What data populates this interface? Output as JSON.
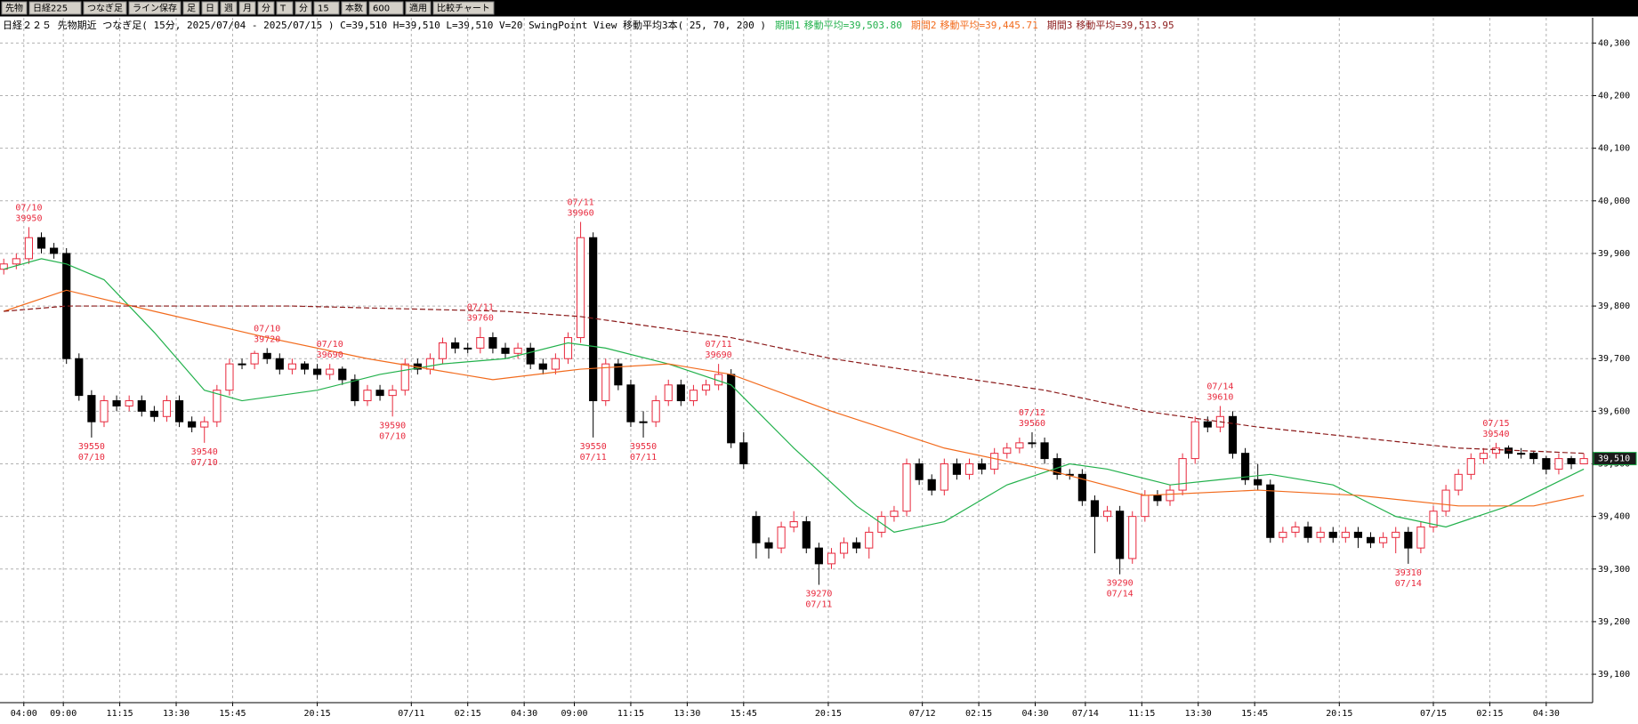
{
  "toolbar": {
    "items": [
      "先物",
      "日経225",
      "つなぎ足",
      "ライン保存",
      "足",
      "日",
      "週",
      "月",
      "分",
      "T",
      "分",
      "15",
      "本数",
      "600",
      "適用",
      "比較チャート"
    ]
  },
  "chart_data": {
    "type": "candlestick",
    "header": "日経２２５ 先物期近 つなぎ足( 15分, 2025/07/04 - 2025/07/15 )  C=39,510 H=39,510 L=39,510 V=20   SwingPoint View   移動平均3本( 25, 70, 200 )",
    "up_color": "#e8283c",
    "down_color": "#000000",
    "xlim": [
      -0.3,
      126.7
    ],
    "ylim": [
      39046,
      40348
    ],
    "grid": true,
    "yticks": [
      {
        "value": 39100,
        "label": "39,100"
      },
      {
        "value": 39200,
        "label": "39,200"
      },
      {
        "value": 39300,
        "label": "39,300"
      },
      {
        "value": 39400,
        "label": "39,400"
      },
      {
        "value": 39500,
        "label": "39,500"
      },
      {
        "value": 39600,
        "label": "39,600"
      },
      {
        "value": 39700,
        "label": "39,700"
      },
      {
        "value": 39800,
        "label": "39,800"
      },
      {
        "value": 39900,
        "label": "39,900"
      },
      {
        "value": 40000,
        "label": "40,000"
      },
      {
        "value": 40100,
        "label": "40,100"
      },
      {
        "value": 40200,
        "label": "40,200"
      },
      {
        "value": 40300,
        "label": "40,300"
      }
    ],
    "xticks": [
      {
        "value": 1.6,
        "label": "04:00"
      },
      {
        "value": 4.75,
        "label": "09:00"
      },
      {
        "value": 9.25,
        "label": "11:15"
      },
      {
        "value": 13.75,
        "label": "13:30"
      },
      {
        "value": 18.25,
        "label": "15:45"
      },
      {
        "value": 25,
        "label": "20:15"
      },
      {
        "value": 32.5,
        "label": "07/11"
      },
      {
        "value": 37,
        "label": "02:15"
      },
      {
        "value": 41.5,
        "label": "04:30"
      },
      {
        "value": 45.5,
        "label": "09:00"
      },
      {
        "value": 50,
        "label": "11:15"
      },
      {
        "value": 54.5,
        "label": "13:30"
      },
      {
        "value": 59,
        "label": "15:45"
      },
      {
        "value": 65.75,
        "label": "20:15"
      },
      {
        "value": 73.25,
        "label": "07/12"
      },
      {
        "value": 77.75,
        "label": "02:15"
      },
      {
        "value": 82.25,
        "label": "04:30"
      },
      {
        "value": 86.25,
        "label": "07/14"
      },
      {
        "value": 90.75,
        "label": "11:15"
      },
      {
        "value": 95.25,
        "label": "13:30"
      },
      {
        "value": 99.75,
        "label": "15:45"
      },
      {
        "value": 106.5,
        "label": "20:15"
      },
      {
        "value": 114,
        "label": "07/15"
      },
      {
        "value": 118.5,
        "label": "02:15"
      },
      {
        "value": 123,
        "label": "04:30"
      }
    ],
    "candles": {
      "open": [
        39870,
        39880,
        39890,
        39930,
        39910,
        39900,
        39700,
        39630,
        39580,
        39620,
        39610,
        39620,
        39600,
        39590,
        39620,
        39580,
        39570,
        39580,
        39640,
        39690,
        39690,
        39710,
        39700,
        39680,
        39690,
        39680,
        39670,
        39680,
        39660,
        39620,
        39640,
        39630,
        39640,
        39690,
        39680,
        39700,
        39730,
        39720,
        39720,
        39740,
        39720,
        39710,
        39720,
        39690,
        39680,
        39700,
        39740,
        39930,
        39620,
        39690,
        39650,
        39580,
        39580,
        39620,
        39650,
        39620,
        39640,
        39650,
        39670,
        39540,
        39400,
        39350,
        39340,
        39380,
        39390,
        39340,
        39310,
        39330,
        39350,
        39340,
        39370,
        39400,
        39410,
        39500,
        39470,
        39450,
        39500,
        39480,
        39500,
        39490,
        39520,
        39530,
        39540,
        39540,
        39510,
        39480,
        39480,
        39430,
        39400,
        39410,
        39320,
        39400,
        39440,
        39430,
        39450,
        39510,
        39580,
        39570,
        39590,
        39520,
        39470,
        39460,
        39360,
        39370,
        39380,
        39360,
        39370,
        39360,
        39370,
        39360,
        39350,
        39360,
        39370,
        39340,
        39380,
        39410,
        39450,
        39480,
        39510,
        39520,
        39530,
        39520,
        39520,
        39510,
        39490,
        39510,
        39500
      ],
      "high": [
        39890,
        39900,
        39950,
        39940,
        39920,
        39910,
        39710,
        39640,
        39630,
        39630,
        39630,
        39630,
        39610,
        39630,
        39630,
        39590,
        39590,
        39650,
        39700,
        39700,
        39715,
        39720,
        39710,
        39700,
        39695,
        39690,
        39690,
        39685,
        39670,
        39650,
        39650,
        39650,
        39700,
        39700,
        39710,
        39740,
        39740,
        39730,
        39760,
        39750,
        39730,
        39730,
        39730,
        39700,
        39710,
        39750,
        39960,
        39940,
        39700,
        39700,
        39660,
        39600,
        39630,
        39660,
        39660,
        39650,
        39660,
        39690,
        39680,
        39560,
        39410,
        39360,
        39390,
        39410,
        39400,
        39350,
        39340,
        39360,
        39360,
        39380,
        39410,
        39420,
        39510,
        39510,
        39480,
        39510,
        39510,
        39510,
        39510,
        39530,
        39540,
        39550,
        39560,
        39550,
        39520,
        39490,
        39490,
        39440,
        39420,
        39420,
        39410,
        39450,
        39450,
        39460,
        39520,
        39590,
        39590,
        39610,
        39600,
        39530,
        39500,
        39470,
        39380,
        39390,
        39390,
        39380,
        39380,
        39380,
        39380,
        39370,
        39370,
        39380,
        39380,
        39390,
        39420,
        39460,
        39490,
        39520,
        39530,
        39540,
        39535,
        39530,
        39525,
        39515,
        39520,
        39515,
        39520
      ],
      "low": [
        39860,
        39870,
        39880,
        39900,
        39890,
        39690,
        39620,
        39550,
        39570,
        39600,
        39600,
        39590,
        39580,
        39580,
        39570,
        39560,
        39540,
        39570,
        39630,
        39680,
        39680,
        39690,
        39670,
        39670,
        39670,
        39660,
        39660,
        39650,
        39610,
        39610,
        39620,
        39590,
        39630,
        39670,
        39670,
        39690,
        39710,
        39710,
        39710,
        39710,
        39700,
        39700,
        39680,
        39670,
        39670,
        39690,
        39730,
        39550,
        39610,
        39640,
        39570,
        39550,
        39570,
        39610,
        39610,
        39610,
        39630,
        39640,
        39530,
        39490,
        39320,
        39320,
        39330,
        39370,
        39330,
        39270,
        39300,
        39320,
        39330,
        39320,
        39360,
        39390,
        39400,
        39460,
        39440,
        39440,
        39470,
        39470,
        39480,
        39480,
        39510,
        39520,
        39530,
        39500,
        39470,
        39470,
        39420,
        39330,
        39390,
        39290,
        39310,
        39390,
        39420,
        39420,
        39440,
        39500,
        39560,
        39560,
        39510,
        39460,
        39450,
        39350,
        39350,
        39360,
        39350,
        39350,
        39350,
        39350,
        39340,
        39340,
        39340,
        39330,
        39310,
        39330,
        39370,
        39400,
        39440,
        39470,
        39500,
        39510,
        39510,
        39510,
        39500,
        39480,
        39480,
        39490,
        39500
      ],
      "close": [
        39880,
        39890,
        39930,
        39910,
        39900,
        39700,
        39630,
        39580,
        39620,
        39610,
        39620,
        39600,
        39590,
        39620,
        39580,
        39570,
        39580,
        39640,
        39690,
        39690,
        39710,
        39700,
        39680,
        39690,
        39680,
        39670,
        39680,
        39660,
        39620,
        39640,
        39630,
        39640,
        39690,
        39680,
        39700,
        39730,
        39720,
        39720,
        39740,
        39720,
        39710,
        39720,
        39690,
        39680,
        39700,
        39740,
        39930,
        39620,
        39690,
        39650,
        39580,
        39580,
        39620,
        39650,
        39620,
        39640,
        39650,
        39670,
        39540,
        39500,
        39350,
        39340,
        39380,
        39390,
        39340,
        39310,
        39330,
        39350,
        39340,
        39370,
        39400,
        39410,
        39500,
        39470,
        39450,
        39500,
        39480,
        39500,
        39490,
        39520,
        39530,
        39540,
        39540,
        39510,
        39480,
        39480,
        39430,
        39400,
        39410,
        39320,
        39400,
        39440,
        39430,
        39450,
        39510,
        39580,
        39570,
        39590,
        39520,
        39470,
        39460,
        39360,
        39370,
        39380,
        39360,
        39370,
        39360,
        39370,
        39360,
        39350,
        39360,
        39370,
        39340,
        39380,
        39410,
        39450,
        39480,
        39510,
        39520,
        39530,
        39520,
        39520,
        39510,
        39490,
        39510,
        39500,
        39510
      ]
    },
    "series": [
      {
        "name": "期間1",
        "last_label": "移動平均=39,503.80",
        "color": "#22b14c",
        "dashed": false,
        "x": [
          0,
          3,
          5,
          8,
          12,
          16,
          19,
          25,
          30,
          35,
          40,
          45,
          48,
          53,
          58,
          63,
          68,
          71,
          75,
          80,
          85,
          88,
          93,
          97,
          101,
          106,
          111,
          115,
          120,
          126
        ],
        "values": [
          39870,
          39890,
          39880,
          39850,
          39750,
          39640,
          39620,
          39640,
          39670,
          39690,
          39700,
          39730,
          39720,
          39690,
          39650,
          39530,
          39420,
          39370,
          39390,
          39460,
          39500,
          39490,
          39460,
          39470,
          39480,
          39460,
          39400,
          39380,
          39420,
          39490
        ]
      },
      {
        "name": "期間2",
        "last_label": "移動平均=39,445.71",
        "color": "#f26b1d",
        "dashed": false,
        "x": [
          0,
          5,
          12,
          21,
          29,
          39,
          46,
          53,
          58,
          66,
          75,
          83,
          91,
          100,
          108,
          116,
          122,
          126
        ],
        "values": [
          39790,
          39830,
          39790,
          39740,
          39700,
          39660,
          39680,
          39690,
          39670,
          39600,
          39530,
          39490,
          39440,
          39450,
          39440,
          39420,
          39420,
          39440
        ]
      },
      {
        "name": "期間3",
        "last_label": "移動平均=39,513.95",
        "color": "#8b1a1a",
        "dashed": true,
        "x": [
          0,
          5,
          23,
          40,
          46,
          58,
          66,
          83,
          91,
          100,
          108,
          116,
          126
        ],
        "values": [
          39790,
          39800,
          39800,
          39790,
          39780,
          39740,
          39700,
          39640,
          39600,
          39570,
          39550,
          39530,
          39520
        ]
      }
    ],
    "swing_points": [
      {
        "x": 2,
        "date": "07/10",
        "price": 39950,
        "kind": "high"
      },
      {
        "x": 7,
        "date": "07/10",
        "price": 39550,
        "kind": "low"
      },
      {
        "x": 16,
        "date": "07/10",
        "price": 39540,
        "kind": "low"
      },
      {
        "x": 21,
        "date": "07/10",
        "price": 39720,
        "kind": "high"
      },
      {
        "x": 26,
        "date": "07/10",
        "price": 39690,
        "kind": "high"
      },
      {
        "x": 31,
        "date": "07/10",
        "price": 39590,
        "kind": "low"
      },
      {
        "x": 38,
        "date": "07/11",
        "price": 39760,
        "kind": "high"
      },
      {
        "x": 46,
        "date": "07/11",
        "price": 39960,
        "kind": "high"
      },
      {
        "x": 47,
        "date": "07/11",
        "price": 39550,
        "kind": "low"
      },
      {
        "x": 51,
        "date": "07/11",
        "price": 39550,
        "kind": "low"
      },
      {
        "x": 57,
        "date": "07/11",
        "price": 39690,
        "kind": "high"
      },
      {
        "x": 65,
        "date": "07/11",
        "price": 39270,
        "kind": "low"
      },
      {
        "x": 82,
        "date": "07/12",
        "price": 39560,
        "kind": "high"
      },
      {
        "x": 89,
        "date": "07/14",
        "price": 39290,
        "kind": "low"
      },
      {
        "x": 97,
        "date": "07/14",
        "price": 39610,
        "kind": "high"
      },
      {
        "x": 112,
        "date": "07/14",
        "price": 39310,
        "kind": "low"
      },
      {
        "x": 119,
        "date": "07/15",
        "price": 39540,
        "kind": "high"
      }
    ],
    "last_price": {
      "value": 39510,
      "label": "39,510"
    }
  }
}
